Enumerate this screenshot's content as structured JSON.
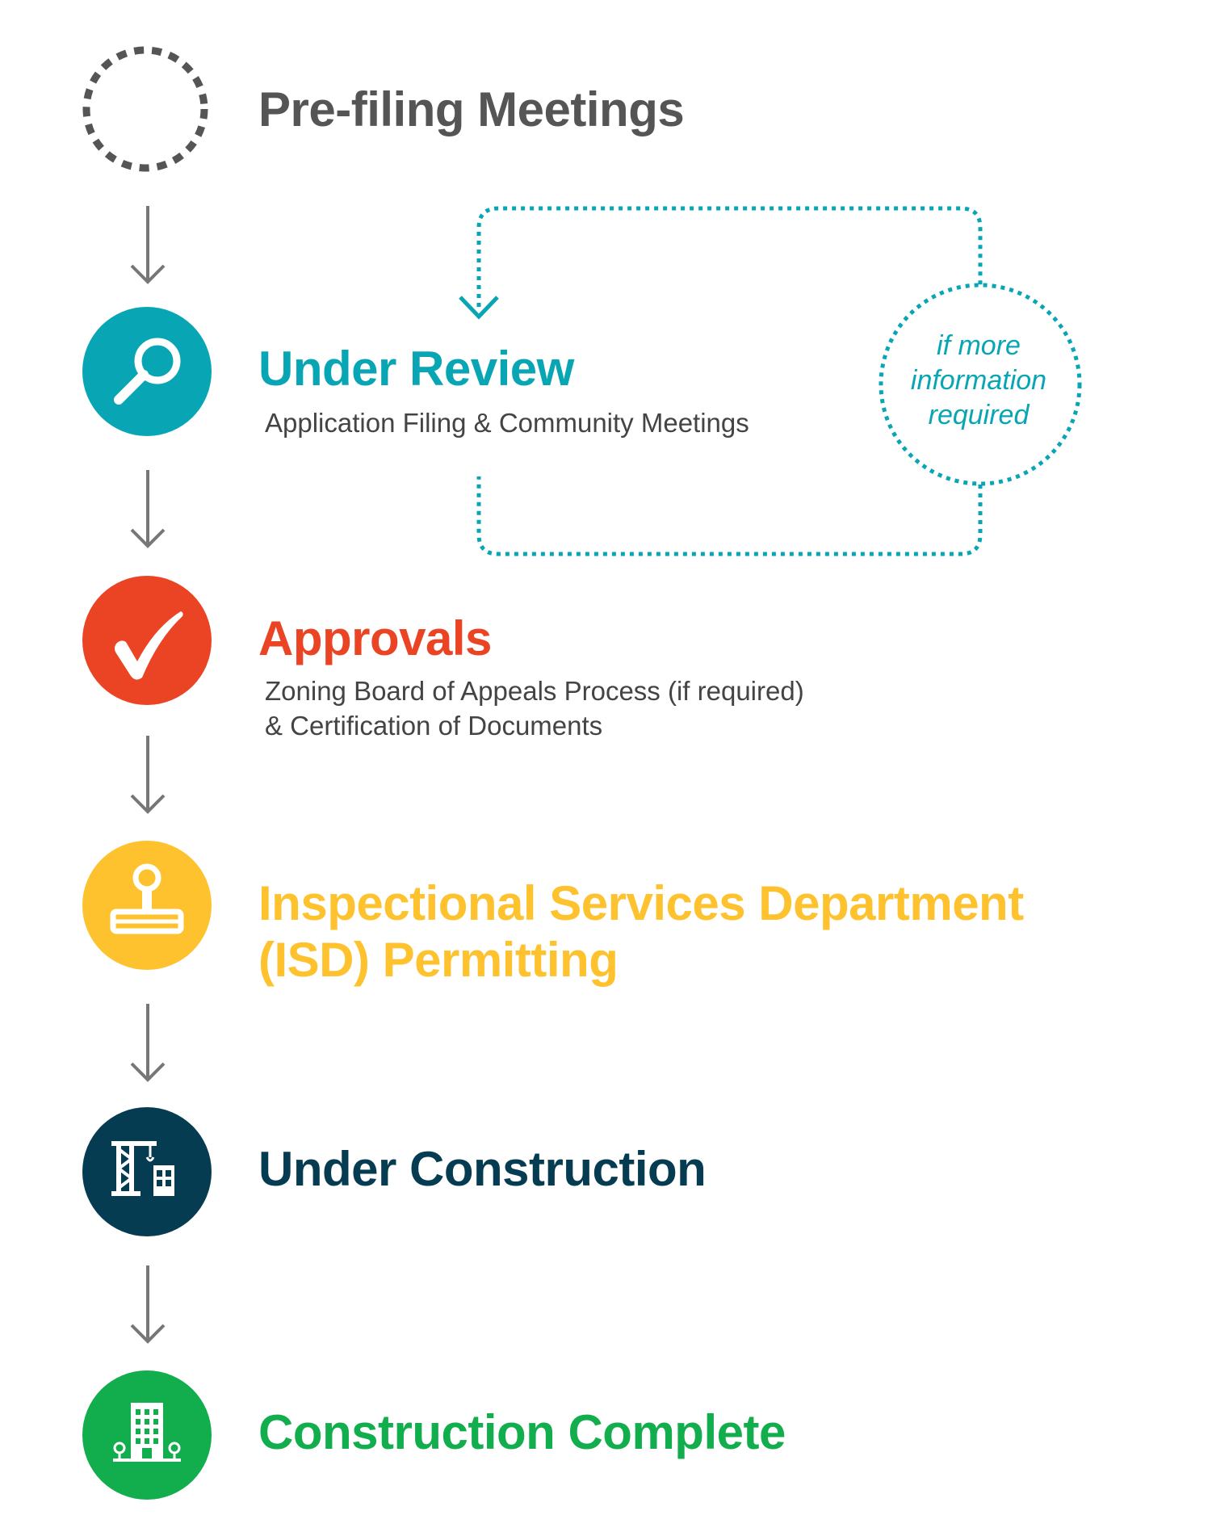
{
  "colors": {
    "grey": "#555555",
    "teal": "#08a6b4",
    "red": "#ea4424",
    "yellow": "#fdc22d",
    "navy": "#063c52",
    "green": "#12ad4c",
    "desc": "#444444",
    "arrow": "#777777"
  },
  "stages": [
    {
      "title": "Pre-filing Meetings",
      "icon": "dashed-circle-icon"
    },
    {
      "title": "Under Review",
      "desc": [
        "Application Filing & Community Meetings"
      ],
      "icon": "magnifier-icon"
    },
    {
      "title": "Approvals",
      "desc": [
        "Zoning Board of Appeals Process (if required)",
        "& Certification of Documents"
      ],
      "icon": "checkmark-icon"
    },
    {
      "title_lines": [
        "Inspectional Services Department",
        "(ISD) Permitting"
      ],
      "icon": "stamp-icon"
    },
    {
      "title": "Under Construction",
      "icon": "crane-building-icon"
    },
    {
      "title": "Construction Complete",
      "icon": "completed-building-icon"
    }
  ],
  "loop_note": {
    "lines": [
      "if more",
      "information",
      "required"
    ]
  }
}
